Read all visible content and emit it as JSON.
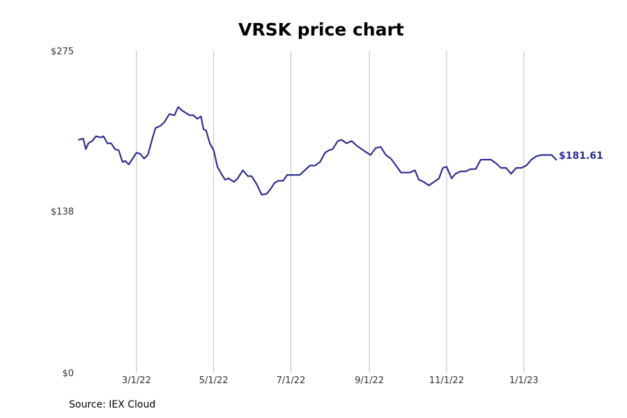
{
  "chart_data": {
    "type": "line",
    "title": "VRSK price chart",
    "xlabel": "",
    "ylabel": "",
    "x_range": [
      "2022-01-10",
      "2023-02-24"
    ],
    "ylim": [
      0,
      275
    ],
    "y_ticks": [
      {
        "value": 0,
        "label": "$0"
      },
      {
        "value": 138,
        "label": "$138"
      },
      {
        "value": 275,
        "label": "$275"
      }
    ],
    "x_ticks": [
      {
        "date": "2022-03-01",
        "label": "3/1/22"
      },
      {
        "date": "2022-05-01",
        "label": "5/1/22"
      },
      {
        "date": "2022-07-01",
        "label": "7/1/22"
      },
      {
        "date": "2022-09-01",
        "label": "9/1/22"
      },
      {
        "date": "2022-11-01",
        "label": "11/1/22"
      },
      {
        "date": "2023-01-01",
        "label": "1/1/23"
      }
    ],
    "grid": "vertical at x ticks",
    "last_value_label": "$181.61",
    "series": [
      {
        "color": "#2e2e8f",
        "x": [
          "2022-01-14",
          "2022-01-18",
          "2022-01-20",
          "2022-01-22",
          "2022-01-25",
          "2022-01-28",
          "2022-02-01",
          "2022-02-03",
          "2022-02-06",
          "2022-02-09",
          "2022-02-12",
          "2022-02-15",
          "2022-02-18",
          "2022-02-20",
          "2022-02-23",
          "2022-02-26",
          "2022-03-01",
          "2022-03-04",
          "2022-03-07",
          "2022-03-10",
          "2022-03-13",
          "2022-03-16",
          "2022-03-20",
          "2022-03-23",
          "2022-03-27",
          "2022-03-31",
          "2022-04-03",
          "2022-04-06",
          "2022-04-09",
          "2022-04-12",
          "2022-04-15",
          "2022-04-18",
          "2022-04-21",
          "2022-04-23",
          "2022-04-25",
          "2022-04-28",
          "2022-05-01",
          "2022-05-04",
          "2022-05-07",
          "2022-05-10",
          "2022-05-13",
          "2022-05-17",
          "2022-05-20",
          "2022-05-24",
          "2022-05-28",
          "2022-05-31",
          "2022-06-04",
          "2022-06-08",
          "2022-06-12",
          "2022-06-15",
          "2022-06-18",
          "2022-06-21",
          "2022-06-25",
          "2022-06-28",
          "2022-07-01",
          "2022-07-04",
          "2022-07-08",
          "2022-07-12",
          "2022-07-16",
          "2022-07-20",
          "2022-07-24",
          "2022-07-28",
          "2022-07-31",
          "2022-08-03",
          "2022-08-07",
          "2022-08-10",
          "2022-08-14",
          "2022-08-18",
          "2022-08-22",
          "2022-08-26",
          "2022-08-30",
          "2022-09-02",
          "2022-09-06",
          "2022-09-10",
          "2022-09-14",
          "2022-09-18",
          "2022-09-22",
          "2022-09-26",
          "2022-09-30",
          "2022-10-03",
          "2022-10-07",
          "2022-10-10",
          "2022-10-14",
          "2022-10-18",
          "2022-10-22",
          "2022-10-26",
          "2022-10-29",
          "2022-11-01",
          "2022-11-05",
          "2022-11-08",
          "2022-11-12",
          "2022-11-16",
          "2022-11-20",
          "2022-11-24",
          "2022-11-28",
          "2022-12-02",
          "2022-12-06",
          "2022-12-10",
          "2022-12-14",
          "2022-12-18",
          "2022-12-22",
          "2022-12-26",
          "2022-12-30",
          "2023-01-03",
          "2023-01-07",
          "2023-01-11",
          "2023-01-15",
          "2023-01-19",
          "2023-01-23",
          "2023-01-27"
        ],
        "y": [
          199,
          200,
          191,
          196,
          198,
          202,
          201,
          202,
          196,
          196,
          191,
          190,
          180,
          181,
          178,
          183,
          188,
          187,
          183,
          186,
          198,
          209,
          211,
          214,
          221,
          220,
          227,
          224,
          222,
          220,
          220,
          217,
          219,
          208,
          207,
          196,
          190,
          176,
          170,
          165,
          166,
          163,
          166,
          173,
          168,
          168,
          161,
          152,
          153,
          157,
          162,
          164,
          164,
          169,
          169,
          169,
          169,
          173,
          177,
          177,
          180,
          188,
          190,
          191,
          198,
          199,
          196,
          198,
          194,
          191,
          188,
          186,
          192,
          193,
          186,
          183,
          177,
          171,
          171,
          171,
          173,
          165,
          163,
          160,
          163,
          166,
          175,
          176,
          166,
          170,
          172,
          172,
          174,
          174,
          182,
          182,
          182,
          179,
          175,
          175,
          170,
          175,
          175,
          177,
          182,
          185,
          186,
          186,
          186,
          181.61
        ]
      }
    ]
  },
  "source": "Source: IEX Cloud"
}
